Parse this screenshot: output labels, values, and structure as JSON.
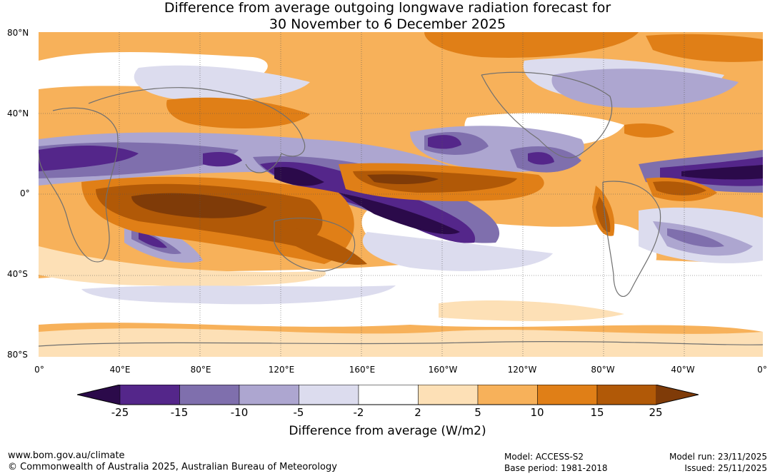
{
  "title": {
    "line1": "Difference from average outgoing longwave radiation forecast for",
    "line2": "30 November to 6 December 2025"
  },
  "lat_labels": [
    "80°N",
    "40°N",
    "0°",
    "40°S",
    "80°S"
  ],
  "lon_labels": [
    "0°",
    "40°E",
    "80°E",
    "120°E",
    "160°E",
    "160°W",
    "120°W",
    "80°W",
    "40°W",
    "0°"
  ],
  "colorbar": {
    "title": "Difference from average (W/m2)",
    "ticks": [
      "-25",
      "-15",
      "-10",
      "-5",
      "-2",
      "2",
      "5",
      "10",
      "15",
      "25"
    ],
    "colors": {
      "lt_neg25": "#2b0a4a",
      "neg25_neg15": "#54268a",
      "neg15_neg10": "#7f6fad",
      "neg10_neg5": "#ada6d0",
      "neg5_neg2": "#dcdcee",
      "neg2_2": "#ffffff",
      "2_5": "#fde0b6",
      "5_10": "#f7b15a",
      "10_15": "#e07f17",
      "15_25": "#b15907",
      "gt_25": "#7f3b08"
    }
  },
  "footer": {
    "website": "www.bom.gov.au/climate",
    "copyright": "© Commonwealth of Australia 2025, Australian Bureau of Meteorology",
    "model": "Model: ACCESS-S2",
    "base_period": "Base period: 1981-2018",
    "model_run": "Model run: 23/11/2025",
    "issued": "Issued: 25/11/2025"
  }
}
